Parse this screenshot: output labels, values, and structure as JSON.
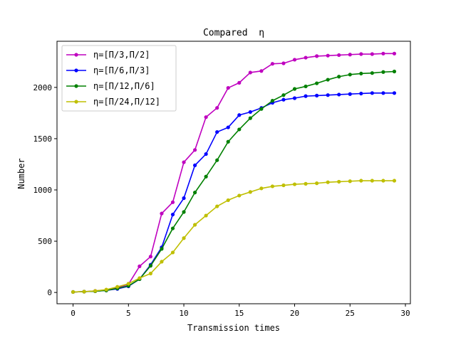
{
  "chart_data": {
    "type": "line",
    "title": "Compared  η",
    "xlabel": "Transmission times",
    "ylabel": "Number",
    "xlim": [
      -1.45,
      30.45
    ],
    "ylim": [
      -110,
      2450
    ],
    "xticks": [
      0,
      5,
      10,
      15,
      20,
      25,
      30
    ],
    "yticks": [
      0,
      500,
      1000,
      1500,
      2000
    ],
    "grid": false,
    "legend_position": "top-left",
    "x": [
      0,
      1,
      2,
      3,
      4,
      5,
      6,
      7,
      8,
      9,
      10,
      11,
      12,
      13,
      14,
      15,
      16,
      17,
      18,
      19,
      20,
      21,
      22,
      23,
      24,
      25,
      26,
      27,
      28,
      29
    ],
    "series": [
      {
        "name": "η=[Π/3,Π/2]",
        "color": "#bf00bf",
        "values": [
          5,
          8,
          15,
          25,
          45,
          80,
          255,
          350,
          770,
          880,
          1270,
          1390,
          1710,
          1800,
          1995,
          2045,
          2145,
          2160,
          2230,
          2235,
          2270,
          2290,
          2305,
          2310,
          2315,
          2320,
          2325,
          2325,
          2330,
          2330
        ]
      },
      {
        "name": "η=[Π/6,Π/3]",
        "color": "#0000ff",
        "values": [
          5,
          8,
          12,
          20,
          35,
          60,
          130,
          270,
          440,
          760,
          920,
          1240,
          1350,
          1565,
          1610,
          1730,
          1760,
          1800,
          1850,
          1880,
          1895,
          1915,
          1920,
          1925,
          1930,
          1935,
          1940,
          1945,
          1945,
          1945
        ]
      },
      {
        "name": "η=[Π/12,Π/6]",
        "color": "#008000",
        "values": [
          5,
          8,
          12,
          20,
          40,
          65,
          130,
          260,
          425,
          625,
          785,
          975,
          1130,
          1290,
          1470,
          1590,
          1700,
          1790,
          1870,
          1925,
          1985,
          2010,
          2040,
          2075,
          2105,
          2125,
          2135,
          2140,
          2150,
          2155
        ]
      },
      {
        "name": "η=[Π/24,Π/12]",
        "color": "#bfbf00",
        "values": [
          5,
          8,
          15,
          28,
          55,
          85,
          140,
          185,
          300,
          390,
          530,
          660,
          750,
          840,
          900,
          945,
          980,
          1015,
          1035,
          1045,
          1055,
          1060,
          1065,
          1075,
          1080,
          1085,
          1090,
          1090,
          1090,
          1090
        ]
      }
    ]
  }
}
